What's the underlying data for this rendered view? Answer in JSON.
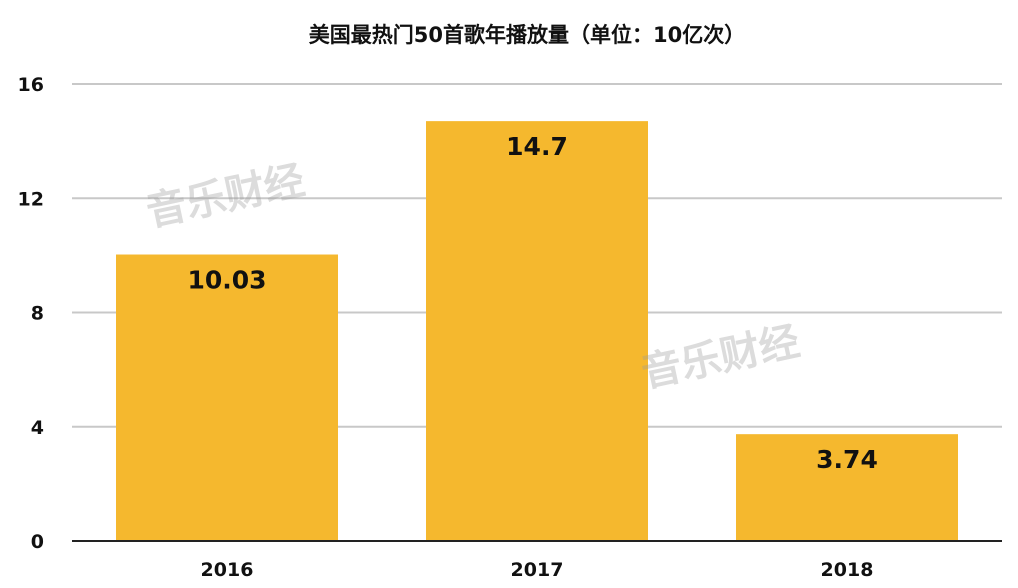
{
  "chart_data": {
    "type": "bar",
    "title": "美国最热门50首歌年播放量（单位：10亿次）",
    "categories": [
      "2016",
      "2017",
      "2018"
    ],
    "values": [
      10.03,
      14.7,
      3.74
    ],
    "value_labels": [
      "10.03",
      "14.7",
      "3.74"
    ],
    "yticks": [
      "0",
      "4",
      "8",
      "12",
      "16"
    ],
    "ylim": [
      0,
      16
    ],
    "grid": true,
    "bar_color": "#F5B82E"
  },
  "watermark": {
    "text": "音乐财经"
  }
}
